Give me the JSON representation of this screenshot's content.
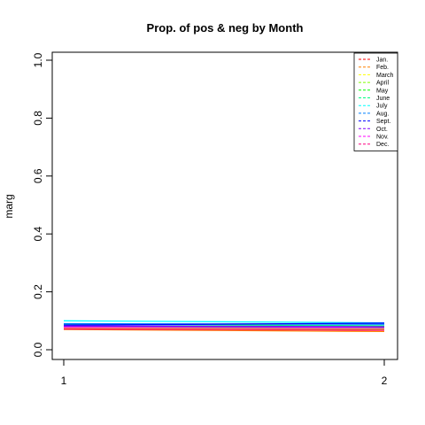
{
  "chart_data": {
    "type": "line",
    "title": "Prop. of pos & neg by Month",
    "xlabel": "",
    "ylabel": "marg",
    "x": [
      1,
      2
    ],
    "x_ticks": [
      "1",
      "2"
    ],
    "y_ticks": [
      "0.0",
      "0.2",
      "0.4",
      "0.6",
      "0.8",
      "1.0"
    ],
    "xlim": [
      1,
      2
    ],
    "ylim": [
      0,
      1
    ],
    "grid": false,
    "legend_position": "top-right",
    "line_style": "dashed",
    "series": [
      {
        "name": "Jan.",
        "color": "#FF0000",
        "values": [
          0.073,
          0.068
        ]
      },
      {
        "name": "Feb.",
        "color": "#FF8000",
        "values": [
          0.07,
          0.063
        ]
      },
      {
        "name": "March",
        "color": "#FFFF00",
        "values": [
          0.075,
          0.07
        ]
      },
      {
        "name": "April",
        "color": "#80FF00",
        "values": [
          0.078,
          0.073
        ]
      },
      {
        "name": "May",
        "color": "#00FF00",
        "values": [
          0.08,
          0.076
        ]
      },
      {
        "name": "June",
        "color": "#00FF80",
        "values": [
          0.088,
          0.083
        ]
      },
      {
        "name": "July",
        "color": "#00FFFF",
        "values": [
          0.1,
          0.093
        ]
      },
      {
        "name": "Aug.",
        "color": "#0080FF",
        "values": [
          0.09,
          0.088
        ]
      },
      {
        "name": "Sept.",
        "color": "#0000FF",
        "values": [
          0.085,
          0.092
        ]
      },
      {
        "name": "Oct.",
        "color": "#8000FF",
        "values": [
          0.082,
          0.08
        ]
      },
      {
        "name": "Nov.",
        "color": "#FF00FF",
        "values": [
          0.078,
          0.075
        ]
      },
      {
        "name": "Dec.",
        "color": "#FF0080",
        "values": [
          0.072,
          0.068
        ]
      }
    ]
  }
}
